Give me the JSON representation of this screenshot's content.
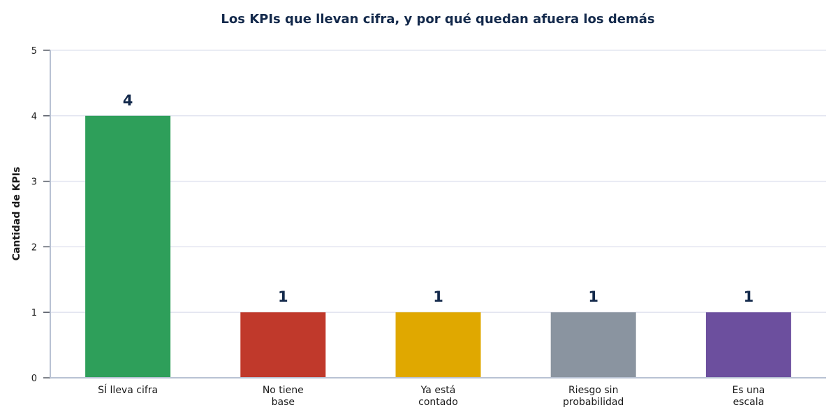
{
  "chart_data": {
    "type": "bar",
    "title": "Los KPIs que llevan cifra, y por qué quedan afuera los demás",
    "xlabel": "",
    "ylabel": "Cantidad de KPIs",
    "ylim": [
      0,
      5
    ],
    "yticks": [
      "0",
      "1",
      "2",
      "3",
      "4",
      "5"
    ],
    "grid": true,
    "categories": [
      [
        "SÍ lleva cifra"
      ],
      [
        "No tiene",
        "base"
      ],
      [
        "Ya está",
        "contado"
      ],
      [
        "Riesgo sin",
        "probabilidad"
      ],
      [
        "Es una",
        "escala"
      ]
    ],
    "values": [
      4,
      1,
      1,
      1,
      1
    ],
    "data_labels": [
      "4",
      "1",
      "1",
      "1",
      "1"
    ],
    "colors": [
      "#2e9f5a",
      "#c0392b",
      "#e0a800",
      "#8a94a0",
      "#6c4f9e"
    ]
  },
  "theme": {
    "title_color": "#13294b",
    "axis_color": "#b8c2d3",
    "grid_color": "#e3e5f0"
  }
}
